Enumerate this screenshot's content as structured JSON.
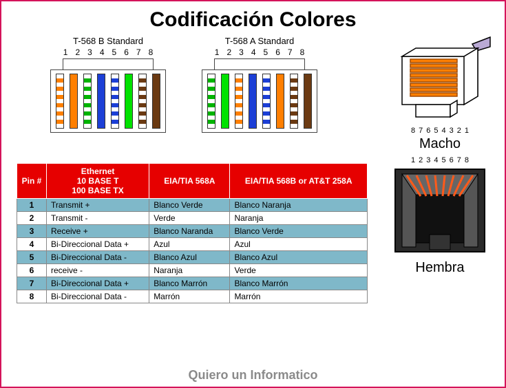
{
  "title": "Codificación Colores",
  "footer": "Quiero un Informatico",
  "standards": {
    "b": {
      "label": "T-568 B Standard",
      "pins": [
        "1",
        "2",
        "3",
        "4",
        "5",
        "6",
        "7",
        "8"
      ],
      "wires": [
        {
          "base": "#ffffff",
          "stripe": "#ff7f00"
        },
        {
          "base": "#ff7f00",
          "stripe": null
        },
        {
          "base": "#ffffff",
          "stripe": "#00b400"
        },
        {
          "base": "#1c3fd6",
          "stripe": null
        },
        {
          "base": "#ffffff",
          "stripe": "#1c3fd6"
        },
        {
          "base": "#00e200",
          "stripe": null
        },
        {
          "base": "#ffffff",
          "stripe": "#6b3a12"
        },
        {
          "base": "#6b3a12",
          "stripe": null
        }
      ]
    },
    "a": {
      "label": "T-568 A Standard",
      "pins": [
        "1",
        "2",
        "3",
        "4",
        "5",
        "6",
        "7",
        "8"
      ],
      "wires": [
        {
          "base": "#ffffff",
          "stripe": "#00b400"
        },
        {
          "base": "#00e200",
          "stripe": null
        },
        {
          "base": "#ffffff",
          "stripe": "#ff7f00"
        },
        {
          "base": "#1c3fd6",
          "stripe": null
        },
        {
          "base": "#ffffff",
          "stripe": "#1c3fd6"
        },
        {
          "base": "#ff7f00",
          "stripe": null
        },
        {
          "base": "#ffffff",
          "stripe": "#6b3a12"
        },
        {
          "base": "#6b3a12",
          "stripe": null
        }
      ]
    }
  },
  "macho": {
    "label": "Macho",
    "pins": [
      "8",
      "7",
      "6",
      "5",
      "4",
      "3",
      "2",
      "1"
    ],
    "contact_color": "#ff7f00",
    "body_color": "#ffffff",
    "cable_color": "#b9a9d4",
    "outline": "#000000"
  },
  "hembra": {
    "label": "Hembra",
    "pins": [
      "1",
      "2",
      "3",
      "4",
      "5",
      "6",
      "7",
      "8"
    ],
    "contact_color": "#ff5a1a",
    "body_color": "#444444",
    "bg": "#222222",
    "outline": "#000000"
  },
  "table": {
    "headers": {
      "pin": "Pin #",
      "eth": "Ethernet\n10 BASE T\n100 BASE TX",
      "a": "EIA/TIA 568A",
      "b": "EIA/TIA 568B or AT&T 258A"
    },
    "header_bg": "#e60000",
    "header_fg": "#ffffff",
    "row_colors": {
      "odd": "#7fb8c9",
      "even": "#ffffff"
    },
    "rows": [
      {
        "pin": "1",
        "eth": "Transmit +",
        "a": "Blanco Verde",
        "b": "Blanco Naranja"
      },
      {
        "pin": "2",
        "eth": "Transmit -",
        "a": "Verde",
        "b": "Naranja"
      },
      {
        "pin": "3",
        "eth": "Receive +",
        "a": "Blanco Naranda",
        "b": "Blanco Verde"
      },
      {
        "pin": "4",
        "eth": "Bi-Direccional Data +",
        "a": "Azul",
        "b": "Azul"
      },
      {
        "pin": "5",
        "eth": "Bi-Direccional Data -",
        "a": "Blanco Azul",
        "b": "Blanco Azul"
      },
      {
        "pin": "6",
        "eth": "receive -",
        "a": "Naranja",
        "b": "Verde"
      },
      {
        "pin": "7",
        "eth": "Bi-Direccional Data +",
        "a": "Blanco Marrón",
        "b": "Blanco Marrón"
      },
      {
        "pin": "8",
        "eth": "Bi-Direccional Data -",
        "a": "Marrón",
        "b": "Marrón"
      }
    ]
  }
}
